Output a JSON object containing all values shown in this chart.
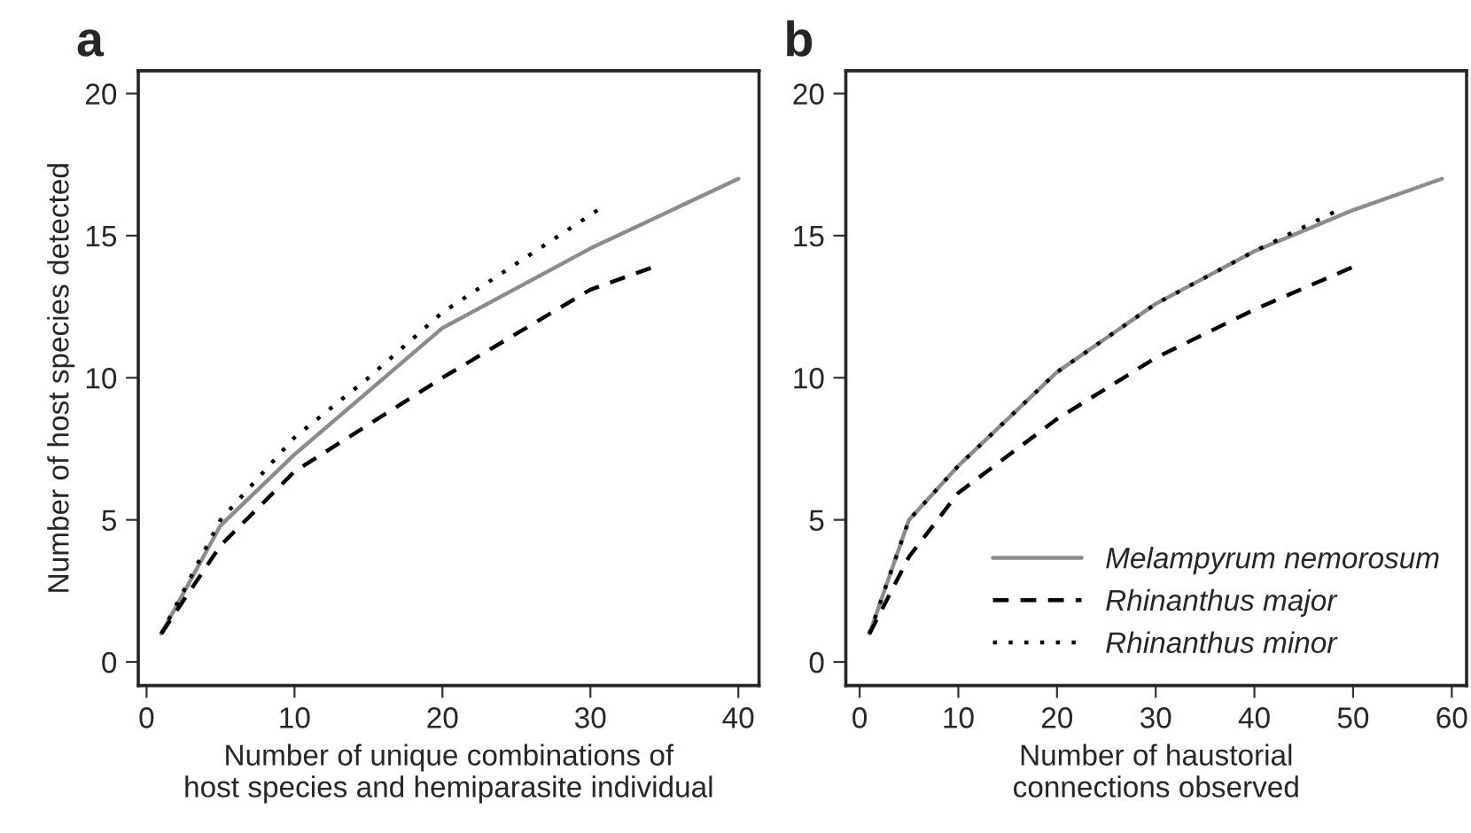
{
  "chart_data": [
    {
      "type": "line",
      "title": "a",
      "xlabel": "Number of unique combinations of\nhost species and hemiparasite individual",
      "ylabel": "Number of host species detected",
      "xlim": [
        -0.56,
        41.4
      ],
      "ylim": [
        -0.83,
        20.8
      ],
      "xticks": [
        0,
        10,
        20,
        30,
        40
      ],
      "yticks": [
        0,
        5,
        10,
        15,
        20
      ],
      "grid": false,
      "legend": false,
      "series": [
        {
          "color": "#8c8c8c",
          "line_style": "solid",
          "x": [
            1,
            5,
            10,
            20,
            30,
            40
          ],
          "values": [
            1.0,
            4.8,
            7.3,
            11.75,
            14.55,
            17.0
          ]
        },
        {
          "color": "#000000",
          "line_style": "dashed",
          "x": [
            1,
            5,
            10,
            20,
            30,
            34.3
          ],
          "values": [
            1.0,
            4.1,
            6.7,
            10.0,
            13.1,
            13.9
          ]
        },
        {
          "color": "#000000",
          "line_style": "dotted",
          "x": [
            1,
            5,
            10,
            15,
            20,
            30.5
          ],
          "values": [
            1.0,
            5.0,
            7.9,
            10.0,
            12.3,
            15.9
          ]
        }
      ]
    },
    {
      "type": "line",
      "title": "b",
      "xlabel": "Number of haustorial\nconnections observed",
      "xlim": [
        -1.4,
        61.5
      ],
      "ylim": [
        -0.83,
        20.8
      ],
      "xticks": [
        0,
        10,
        20,
        30,
        40,
        50,
        60
      ],
      "yticks": [
        0,
        5,
        10,
        15,
        20
      ],
      "grid": false,
      "legend": "bottom right",
      "series": [
        {
          "name": "Melampyrum nemorosum",
          "color": "#8c8c8c",
          "line_style": "solid",
          "x": [
            1,
            5,
            10,
            20,
            30,
            40,
            50,
            59
          ],
          "values": [
            1.0,
            5.0,
            6.9,
            10.2,
            12.6,
            14.45,
            15.9,
            17.0
          ]
        },
        {
          "name": "Rhinanthus major",
          "color": "#000000",
          "line_style": "dashed",
          "x": [
            1,
            5,
            10,
            20,
            30,
            40,
            50
          ],
          "values": [
            1.0,
            3.7,
            5.95,
            8.55,
            10.7,
            12.4,
            13.9
          ]
        },
        {
          "name": "Rhinanthus minor",
          "color": "#000000",
          "line_style": "dotted",
          "x": [
            1,
            5,
            10,
            20,
            30,
            40,
            48.5
          ],
          "values": [
            1.0,
            5.0,
            6.9,
            10.2,
            12.6,
            14.45,
            15.9
          ]
        }
      ]
    }
  ]
}
